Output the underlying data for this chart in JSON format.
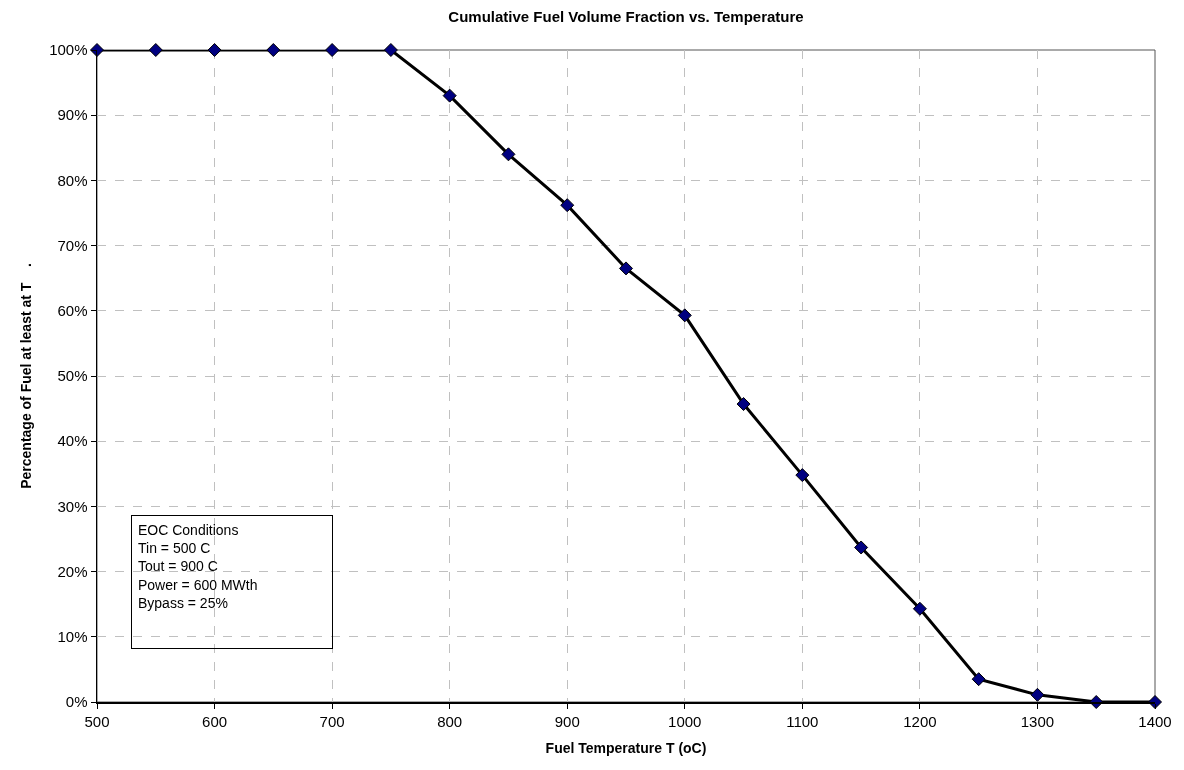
{
  "chart_data": {
    "type": "line",
    "title": "Cumulative Fuel Volume Fraction vs. Temperature",
    "xlabel": "Fuel Temperature T (oC)",
    "ylabel": "Percentage of Fuel at least at T    .",
    "x": [
      500,
      550,
      600,
      650,
      700,
      750,
      800,
      850,
      900,
      950,
      1000,
      1050,
      1100,
      1150,
      1200,
      1250,
      1300,
      1350,
      1400
    ],
    "series": [
      {
        "color": "#000080",
        "values": [
          100,
          100,
          100,
          100,
          100,
          100,
          93,
          84,
          76.2,
          66.5,
          59.3,
          45.7,
          34.8,
          23.7,
          14.3,
          3.5,
          1.1,
          0,
          0
        ]
      }
    ],
    "xlim": [
      500,
      1400
    ],
    "xticks": [
      500,
      600,
      700,
      800,
      900,
      1000,
      1100,
      1200,
      1300,
      1400
    ],
    "ylim": [
      0,
      100
    ],
    "yticks": [
      {
        "value": 0,
        "label": "0%"
      },
      {
        "value": 10,
        "label": "10%"
      },
      {
        "value": 20,
        "label": "20%"
      },
      {
        "value": 30,
        "label": "30%"
      },
      {
        "value": 40,
        "label": "40%"
      },
      {
        "value": 50,
        "label": "50%"
      },
      {
        "value": 60,
        "label": "60%"
      },
      {
        "value": 70,
        "label": "70%"
      },
      {
        "value": 80,
        "label": "80%"
      },
      {
        "value": 90,
        "label": "90%"
      },
      {
        "value": 100,
        "label": "100%"
      }
    ],
    "annotations": [
      "EOC Conditions\nTin = 500 C\nTout = 900 C\nPower = 600 MWth\nBypass = 25%"
    ],
    "grid": true,
    "marker": "diamond",
    "line_style": "solid"
  }
}
